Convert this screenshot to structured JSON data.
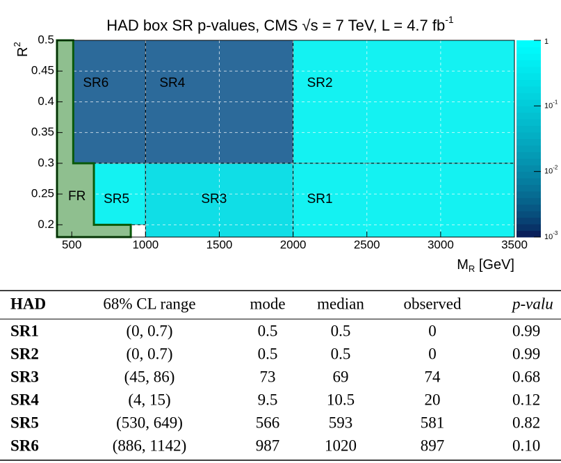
{
  "chart_data": {
    "type": "region-map",
    "title": {
      "text": "HAD box SR p-values, CMS √s = 7 TeV, L = 4.7 fb",
      "sup": "-1"
    },
    "x_label": {
      "text": "M",
      "sub": "R",
      "rest": " [GeV]"
    },
    "y_label": {
      "text": "R",
      "sup": "2"
    },
    "xlim": [
      400,
      3500
    ],
    "ylim": [
      0.18,
      0.5
    ],
    "xticks": [
      500,
      1000,
      1500,
      2000,
      2500,
      3000,
      3500
    ],
    "yticks": [
      0.2,
      0.25,
      0.3,
      0.35,
      0.4,
      0.45,
      0.5
    ],
    "grid": true,
    "zlim": [
      0.001,
      1
    ],
    "zscale": "log",
    "zticks": [
      {
        "value": 1,
        "label": "1"
      },
      {
        "value": 0.1,
        "label": "10",
        "sup": "-1"
      },
      {
        "value": 0.01,
        "label": "10",
        "sup": "-2"
      },
      {
        "value": 0.001,
        "label": "10",
        "sup": "-3"
      }
    ],
    "zcolors": [
      "#0a0a4a",
      "#00ffff"
    ],
    "fit_region": {
      "name": "FR",
      "color": "#8fbf8f",
      "edge": "#0a5a0a",
      "x": [
        400,
        510,
        510,
        650,
        650,
        900,
        900,
        400
      ],
      "y": [
        0.5,
        0.5,
        0.3,
        0.3,
        0.2,
        0.2,
        0.18,
        0.18
      ]
    },
    "regions": [
      {
        "name": "SR6",
        "x": [
          510,
          1000
        ],
        "y": [
          0.3,
          0.5
        ],
        "color": "#2c6a9a"
      },
      {
        "name": "SR4",
        "x": [
          1000,
          2000
        ],
        "y": [
          0.3,
          0.5
        ],
        "color": "#2c6a9a"
      },
      {
        "name": "SR2",
        "x": [
          2000,
          3500
        ],
        "y": [
          0.3,
          0.5
        ],
        "color": "#14f2f2"
      },
      {
        "name": "SR5",
        "x": [
          650,
          1000
        ],
        "y": [
          0.2,
          0.3
        ],
        "color": "#14f2f2"
      },
      {
        "name": "SR3",
        "x": [
          1000,
          2000
        ],
        "y": [
          0.18,
          0.3
        ],
        "color": "#10dee6"
      },
      {
        "name": "SR1",
        "x": [
          2000,
          3500
        ],
        "y": [
          0.18,
          0.3
        ],
        "color": "#14f2f2"
      }
    ]
  },
  "table": {
    "header": [
      "HAD",
      "68% CL range",
      "mode",
      "median",
      "observed",
      "p-valu"
    ],
    "rows": [
      [
        "SR1",
        "(0, 0.7)",
        "0.5",
        "0.5",
        "0",
        "0.99"
      ],
      [
        "SR2",
        "(0, 0.7)",
        "0.5",
        "0.5",
        "0",
        "0.99"
      ],
      [
        "SR3",
        "(45, 86)",
        "73",
        "69",
        "74",
        "0.68"
      ],
      [
        "SR4",
        "(4, 15)",
        "9.5",
        "10.5",
        "20",
        "0.12"
      ],
      [
        "SR5",
        "(530, 649)",
        "566",
        "593",
        "581",
        "0.82"
      ],
      [
        "SR6",
        "(886, 1142)",
        "987",
        "1020",
        "897",
        "0.10"
      ]
    ]
  }
}
